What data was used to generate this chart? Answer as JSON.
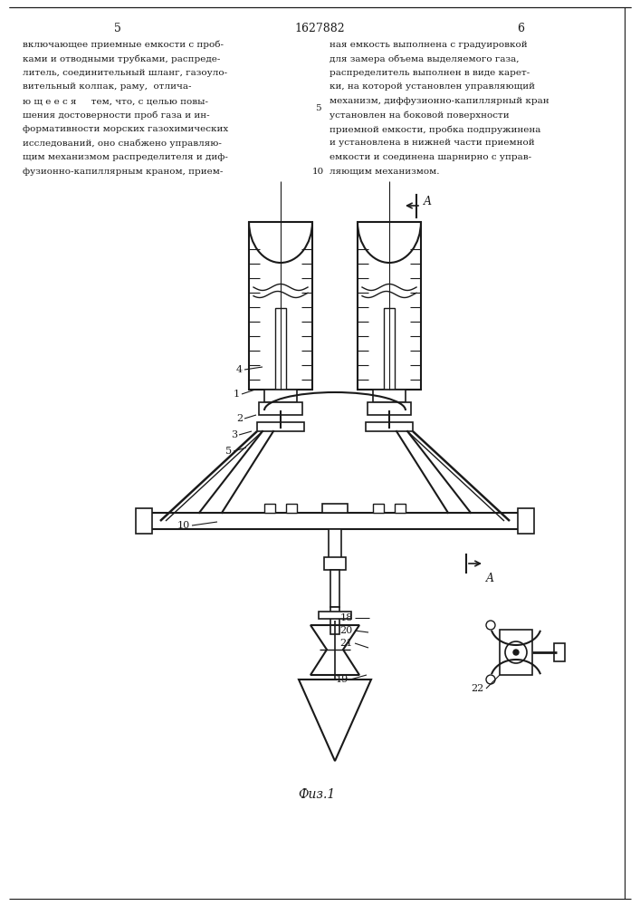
{
  "page_width": 7.07,
  "page_height": 10.0,
  "bg_color": "#ffffff",
  "line_color": "#1a1a1a",
  "text_color": "#1a1a1a",
  "patent_number": "1627882",
  "col_left_num": "5",
  "col_right_num": "6",
  "text_left": [
    "включающее приемные емкости с проб-",
    "ками и отводными трубками, распреде-",
    "литель, соединительный шланг, газоуло-",
    "вительный колпак, раму,  отлича-",
    "ю щ е е с я     тем, что, с целью повы-",
    "шения достоверности проб газа и ин-",
    "формативности морских газохимических",
    "исследований, оно снабжено управляю-",
    "щим механизмом распределителя и диф-",
    "фузионно-капиллярным краном, прием-"
  ],
  "text_right": [
    "ная емкость выполнена с градуировкой",
    "для замера объема выделяемого газа,",
    "распределитель выполнен в виде карет-",
    "ки, на которой установлен управляющий",
    "механизм, диффузионно-капиллярный кран",
    "установлен на боковой поверхности",
    "приемной емкости, пробка подпружинена",
    "и установлена в нижней части приемной",
    "емкости и соединена шарнирно с управ-",
    "ляющим механизмом."
  ],
  "fig_caption": "Физ.1"
}
